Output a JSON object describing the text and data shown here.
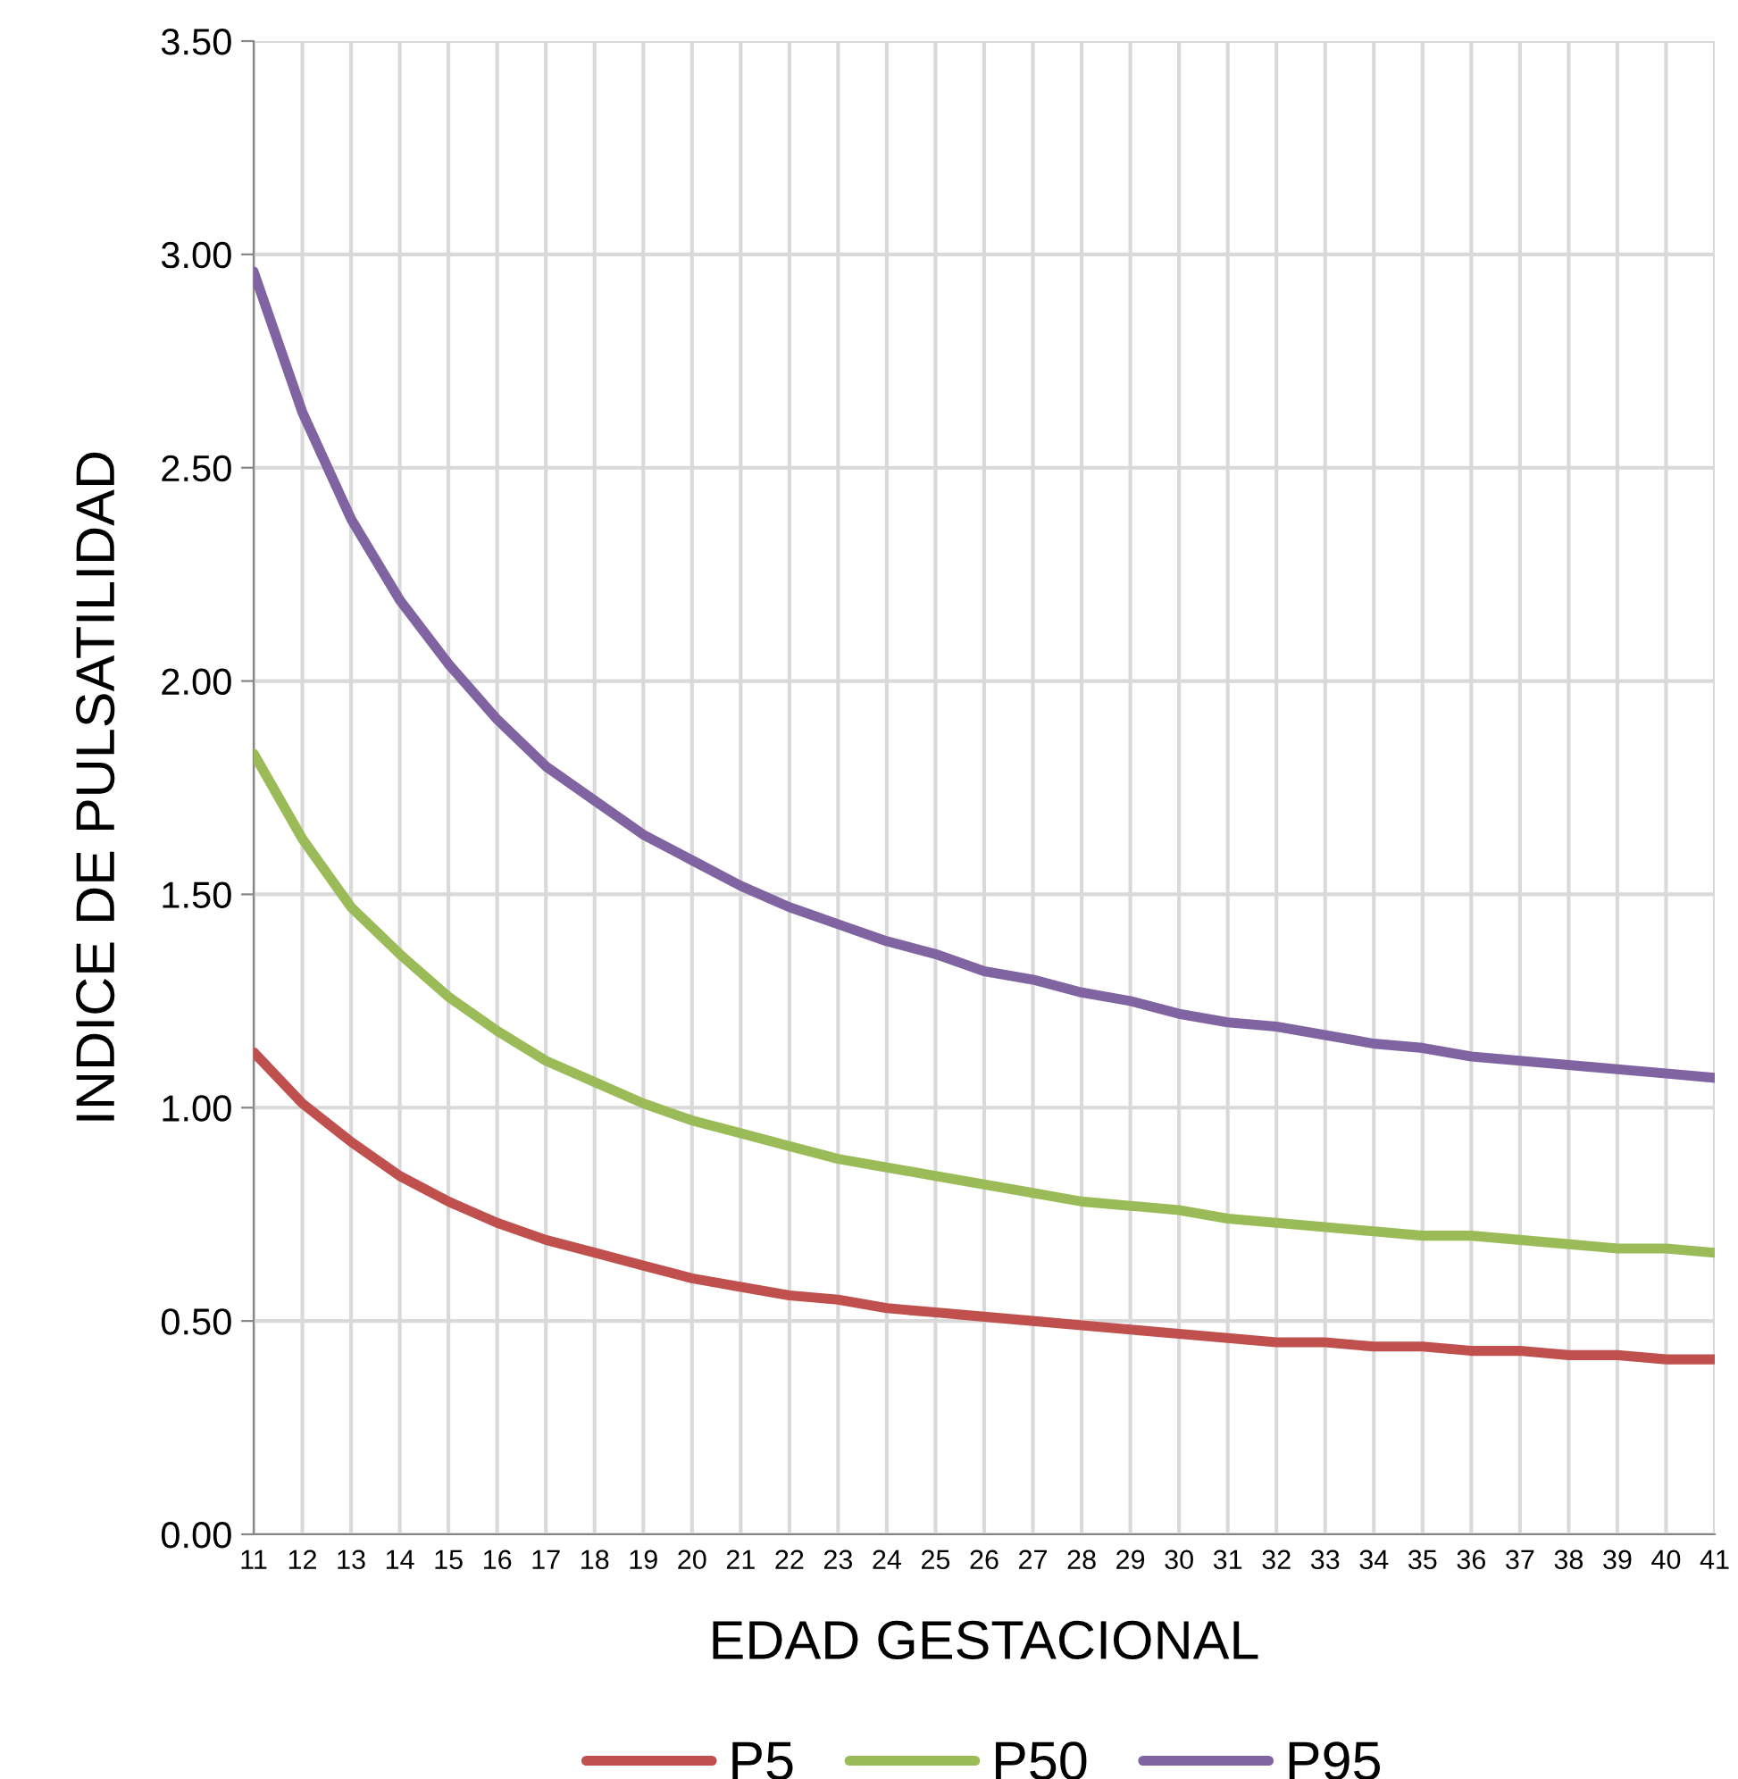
{
  "chart_data": {
    "type": "line",
    "xlabel": "EDAD GESTACIONAL",
    "ylabel": "INDICE DE PULSATILIDAD",
    "categories": [
      "11",
      "12",
      "13",
      "14",
      "15",
      "16",
      "17",
      "18",
      "19",
      "20",
      "21",
      "22",
      "23",
      "24",
      "25",
      "26",
      "27",
      "28",
      "29",
      "30",
      "31",
      "32",
      "33",
      "34",
      "35",
      "36",
      "37",
      "38",
      "39",
      "40",
      "41"
    ],
    "series": [
      {
        "name": "P5",
        "color": "#c0504d",
        "values": [
          1.13,
          1.01,
          0.92,
          0.84,
          0.78,
          0.73,
          0.69,
          0.66,
          0.63,
          0.6,
          0.58,
          0.56,
          0.55,
          0.53,
          0.52,
          0.51,
          0.5,
          0.49,
          0.48,
          0.47,
          0.46,
          0.45,
          0.45,
          0.44,
          0.44,
          0.43,
          0.43,
          0.42,
          0.42,
          0.41,
          0.41
        ]
      },
      {
        "name": "P50",
        "color": "#9bbb59",
        "values": [
          1.83,
          1.63,
          1.47,
          1.36,
          1.26,
          1.18,
          1.11,
          1.06,
          1.01,
          0.97,
          0.94,
          0.91,
          0.88,
          0.86,
          0.84,
          0.82,
          0.8,
          0.78,
          0.77,
          0.76,
          0.74,
          0.73,
          0.72,
          0.71,
          0.7,
          0.7,
          0.69,
          0.68,
          0.67,
          0.67,
          0.66
        ]
      },
      {
        "name": "P95",
        "color": "#8064a2",
        "values": [
          2.96,
          2.63,
          2.38,
          2.19,
          2.04,
          1.91,
          1.8,
          1.72,
          1.64,
          1.58,
          1.52,
          1.47,
          1.43,
          1.39,
          1.36,
          1.32,
          1.3,
          1.27,
          1.25,
          1.22,
          1.2,
          1.19,
          1.17,
          1.15,
          1.14,
          1.12,
          1.11,
          1.1,
          1.09,
          1.08,
          1.07
        ]
      }
    ],
    "ylim": [
      0,
      3.5
    ],
    "yticks": [
      {
        "value": 0,
        "label": "0.00"
      },
      {
        "value": 0.5,
        "label": "0.50"
      },
      {
        "value": 1,
        "label": "1.00"
      },
      {
        "value": 1.5,
        "label": "1.50"
      },
      {
        "value": 2,
        "label": "2.00"
      },
      {
        "value": 2.5,
        "label": "2.50"
      },
      {
        "value": 3,
        "label": "3.00"
      },
      {
        "value": 3.5,
        "label": "3.50"
      }
    ],
    "grid": true,
    "legend": "bottom",
    "marker": "none",
    "line_style": "solid"
  }
}
